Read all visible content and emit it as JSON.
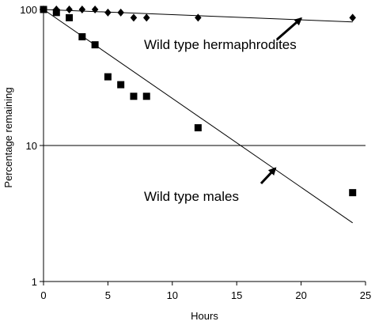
{
  "chart_data": {
    "type": "scatter",
    "title": "",
    "xlabel": "Hours",
    "ylabel": "Percentage remaining",
    "xlim": [
      0,
      25
    ],
    "ylim": [
      1,
      100
    ],
    "y_scale": "log",
    "x_ticks": [
      0,
      5,
      10,
      15,
      20,
      25
    ],
    "x_tick_labels": [
      "0",
      "5",
      "10",
      "15",
      "20",
      "25"
    ],
    "y_ticks": [
      1,
      10,
      100
    ],
    "y_tick_labels": [
      "1",
      "10",
      "100"
    ],
    "grid": false,
    "reference_line_y": 10,
    "series": [
      {
        "name": "Wild type hermaphrodites",
        "marker": "diamond",
        "color": "#000000",
        "points": [
          {
            "x": 0,
            "y": 100
          },
          {
            "x": 1,
            "y": 100
          },
          {
            "x": 2,
            "y": 100
          },
          {
            "x": 3,
            "y": 100
          },
          {
            "x": 4,
            "y": 100
          },
          {
            "x": 5,
            "y": 95
          },
          {
            "x": 6,
            "y": 95
          },
          {
            "x": 7,
            "y": 87
          },
          {
            "x": 8,
            "y": 87
          },
          {
            "x": 12,
            "y": 87
          },
          {
            "x": 24,
            "y": 87
          }
        ],
        "fit_line": [
          {
            "x": 0,
            "y": 100
          },
          {
            "x": 24,
            "y": 81
          }
        ]
      },
      {
        "name": "Wild type males",
        "marker": "square",
        "color": "#000000",
        "points": [
          {
            "x": 0,
            "y": 100
          },
          {
            "x": 1,
            "y": 95
          },
          {
            "x": 2,
            "y": 87
          },
          {
            "x": 3,
            "y": 63
          },
          {
            "x": 4,
            "y": 55
          },
          {
            "x": 5,
            "y": 32
          },
          {
            "x": 6,
            "y": 28
          },
          {
            "x": 7,
            "y": 23
          },
          {
            "x": 8,
            "y": 23
          },
          {
            "x": 12,
            "y": 13.5
          },
          {
            "x": 24,
            "y": 4.5
          }
        ],
        "fit_line": [
          {
            "x": 0,
            "y": 100
          },
          {
            "x": 24,
            "y": 2.7
          }
        ]
      }
    ],
    "annotations": [
      {
        "text": "Wild type hermaphrodites",
        "arrow_to": {
          "x": 20,
          "y": 86
        }
      },
      {
        "text": "Wild type males",
        "arrow_to": {
          "x": 18,
          "y": 6.8
        }
      }
    ]
  }
}
